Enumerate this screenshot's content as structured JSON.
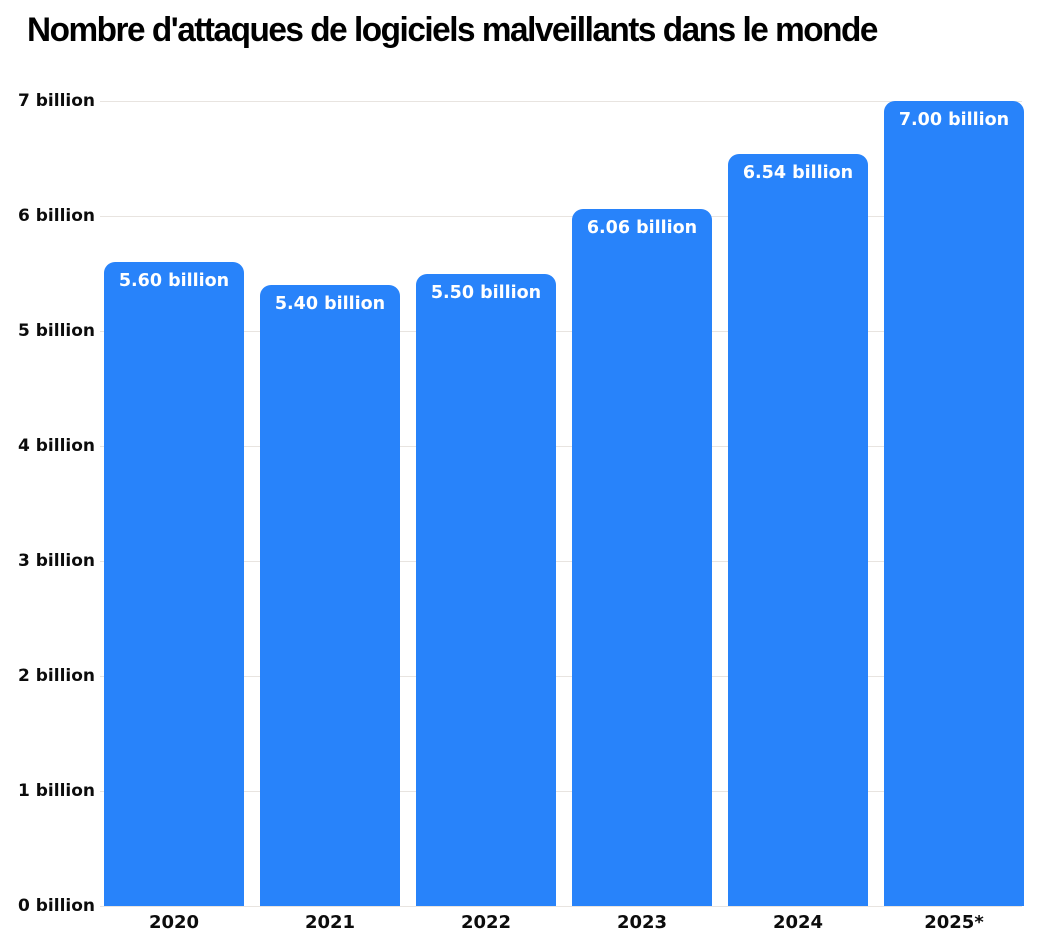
{
  "chart_data": {
    "type": "bar",
    "title": "Nombre d'attaques de logiciels malveillants dans le monde",
    "categories": [
      "2020",
      "2021",
      "2022",
      "2023",
      "2024",
      "2025*"
    ],
    "values": [
      5.6,
      5.4,
      5.5,
      6.06,
      6.54,
      7.0
    ],
    "value_labels": [
      "5.60 billion",
      "5.40 billion",
      "5.50 billion",
      "6.06 billion",
      "6.54 billion",
      "7.00 billion"
    ],
    "y_ticks": [
      "0 billion",
      "1 billion",
      "2 billion",
      "3 billion",
      "4 billion",
      "5 billion",
      "6 billion",
      "7 billion"
    ],
    "ylim": [
      0,
      7
    ],
    "xlabel": "",
    "ylabel": "",
    "grid": true,
    "legend_position": "none",
    "colors": {
      "bar": "#2883fa",
      "gridline": "#e8e4e0",
      "title_text": "#000000",
      "value_label_text": "#ffffff",
      "axis_tick_text": "#0c0c0c",
      "background": "#ffffff"
    }
  }
}
